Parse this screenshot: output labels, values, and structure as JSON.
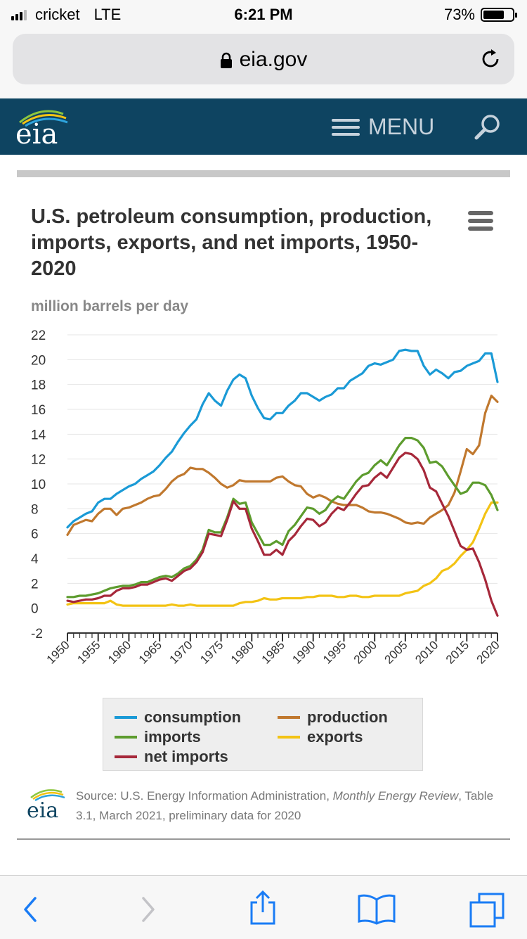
{
  "status": {
    "carrier": "cricket",
    "network": "LTE",
    "time": "6:21 PM",
    "battery_text": "73%",
    "battery_level": 0.73
  },
  "browser": {
    "url": "eia.gov"
  },
  "site": {
    "logo_text": "eia",
    "menu_label": "MENU"
  },
  "chart_title": "U.S. petroleum consumption, production, imports, exports, and net imports, 1950-2020",
  "source": {
    "prefix": "Source: U.S. Energy Information Administration, ",
    "publication": "Monthly Energy Review",
    "suffix": ", Table 3.1, March 2021, preliminary data for 2020"
  },
  "chart_data": {
    "type": "line",
    "ylabel": "million barrels per day",
    "ylim": [
      -2,
      22
    ],
    "yticks": [
      22,
      20,
      18,
      16,
      14,
      12,
      10,
      8,
      6,
      4,
      2,
      0,
      -2
    ],
    "xlim": [
      1950,
      2020
    ],
    "xticks": [
      1950,
      1955,
      1960,
      1965,
      1970,
      1975,
      1980,
      1985,
      1990,
      1995,
      2000,
      2005,
      2010,
      2015,
      2020
    ],
    "x": [
      1950,
      1951,
      1952,
      1953,
      1954,
      1955,
      1956,
      1957,
      1958,
      1959,
      1960,
      1961,
      1962,
      1963,
      1964,
      1965,
      1966,
      1967,
      1968,
      1969,
      1970,
      1971,
      1972,
      1973,
      1974,
      1975,
      1976,
      1977,
      1978,
      1979,
      1980,
      1981,
      1982,
      1983,
      1984,
      1985,
      1986,
      1987,
      1988,
      1989,
      1990,
      1991,
      1992,
      1993,
      1994,
      1995,
      1996,
      1997,
      1998,
      1999,
      2000,
      2001,
      2002,
      2003,
      2004,
      2005,
      2006,
      2007,
      2008,
      2009,
      2010,
      2011,
      2012,
      2013,
      2014,
      2015,
      2016,
      2017,
      2018,
      2019,
      2020
    ],
    "series": [
      {
        "name": "consumption",
        "color": "#1a9ad6",
        "values": [
          6.5,
          7.0,
          7.3,
          7.6,
          7.8,
          8.5,
          8.8,
          8.8,
          9.2,
          9.5,
          9.8,
          10.0,
          10.4,
          10.7,
          11.0,
          11.5,
          12.1,
          12.6,
          13.4,
          14.1,
          14.7,
          15.2,
          16.4,
          17.3,
          16.7,
          16.3,
          17.5,
          18.4,
          18.8,
          18.5,
          17.1,
          16.1,
          15.3,
          15.2,
          15.7,
          15.7,
          16.3,
          16.7,
          17.3,
          17.3,
          17.0,
          16.7,
          17.0,
          17.2,
          17.7,
          17.7,
          18.3,
          18.6,
          18.9,
          19.5,
          19.7,
          19.6,
          19.8,
          20.0,
          20.7,
          20.8,
          20.7,
          20.7,
          19.5,
          18.8,
          19.2,
          18.9,
          18.5,
          19.0,
          19.1,
          19.5,
          19.7,
          19.9,
          20.5,
          20.5,
          18.2
        ]
      },
      {
        "name": "production",
        "color": "#c0782e",
        "values": [
          5.9,
          6.7,
          6.9,
          7.1,
          7.0,
          7.6,
          8.0,
          8.0,
          7.5,
          8.0,
          8.1,
          8.3,
          8.5,
          8.8,
          9.0,
          9.1,
          9.6,
          10.2,
          10.6,
          10.8,
          11.3,
          11.2,
          11.2,
          10.9,
          10.5,
          10.0,
          9.7,
          9.9,
          10.3,
          10.2,
          10.2,
          10.2,
          10.2,
          10.2,
          10.5,
          10.6,
          10.2,
          9.9,
          9.8,
          9.2,
          8.9,
          9.1,
          8.9,
          8.6,
          8.4,
          8.3,
          8.3,
          8.3,
          8.1,
          7.8,
          7.7,
          7.7,
          7.6,
          7.4,
          7.2,
          6.9,
          6.8,
          6.9,
          6.8,
          7.3,
          7.6,
          7.9,
          8.3,
          9.3,
          11.0,
          12.8,
          12.4,
          13.1,
          15.7,
          17.1,
          16.6
        ]
      },
      {
        "name": "imports",
        "color": "#5d9c2e",
        "values": [
          0.9,
          0.9,
          1.0,
          1.0,
          1.1,
          1.2,
          1.4,
          1.6,
          1.7,
          1.8,
          1.8,
          1.9,
          2.1,
          2.1,
          2.3,
          2.5,
          2.6,
          2.5,
          2.8,
          3.2,
          3.4,
          3.9,
          4.7,
          6.3,
          6.1,
          6.1,
          7.3,
          8.8,
          8.4,
          8.5,
          6.9,
          6.0,
          5.1,
          5.1,
          5.4,
          5.1,
          6.2,
          6.7,
          7.4,
          8.1,
          8.0,
          7.6,
          7.9,
          8.6,
          9.0,
          8.8,
          9.5,
          10.2,
          10.7,
          10.9,
          11.5,
          11.9,
          11.5,
          12.3,
          13.1,
          13.7,
          13.7,
          13.5,
          12.9,
          11.7,
          11.8,
          11.4,
          10.6,
          9.9,
          9.2,
          9.4,
          10.1,
          10.1,
          9.9,
          9.1,
          7.9
        ]
      },
      {
        "name": "exports",
        "color": "#f3c314",
        "values": [
          0.3,
          0.4,
          0.4,
          0.4,
          0.4,
          0.4,
          0.4,
          0.6,
          0.3,
          0.2,
          0.2,
          0.2,
          0.2,
          0.2,
          0.2,
          0.2,
          0.2,
          0.3,
          0.2,
          0.2,
          0.3,
          0.2,
          0.2,
          0.2,
          0.2,
          0.2,
          0.2,
          0.2,
          0.4,
          0.5,
          0.5,
          0.6,
          0.8,
          0.7,
          0.7,
          0.8,
          0.8,
          0.8,
          0.8,
          0.9,
          0.9,
          1.0,
          1.0,
          1.0,
          0.9,
          0.9,
          1.0,
          1.0,
          0.9,
          0.9,
          1.0,
          1.0,
          1.0,
          1.0,
          1.0,
          1.2,
          1.3,
          1.4,
          1.8,
          2.0,
          2.4,
          3.0,
          3.2,
          3.6,
          4.2,
          4.7,
          5.3,
          6.4,
          7.6,
          8.5,
          8.5
        ]
      },
      {
        "name": "net imports",
        "color": "#a6283a",
        "values": [
          0.6,
          0.5,
          0.6,
          0.7,
          0.7,
          0.8,
          1.0,
          1.0,
          1.4,
          1.6,
          1.6,
          1.7,
          1.9,
          1.9,
          2.1,
          2.3,
          2.4,
          2.2,
          2.6,
          3.0,
          3.2,
          3.7,
          4.5,
          6.0,
          5.9,
          5.8,
          7.1,
          8.6,
          8.0,
          8.0,
          6.4,
          5.4,
          4.3,
          4.3,
          4.7,
          4.3,
          5.4,
          5.9,
          6.6,
          7.2,
          7.1,
          6.6,
          6.9,
          7.6,
          8.1,
          7.9,
          8.5,
          9.2,
          9.8,
          9.9,
          10.5,
          10.9,
          10.5,
          11.3,
          12.1,
          12.5,
          12.4,
          12.0,
          11.1,
          9.7,
          9.4,
          8.4,
          7.4,
          6.2,
          5.0,
          4.7,
          4.8,
          3.7,
          2.3,
          0.6,
          -0.6
        ]
      }
    ]
  }
}
